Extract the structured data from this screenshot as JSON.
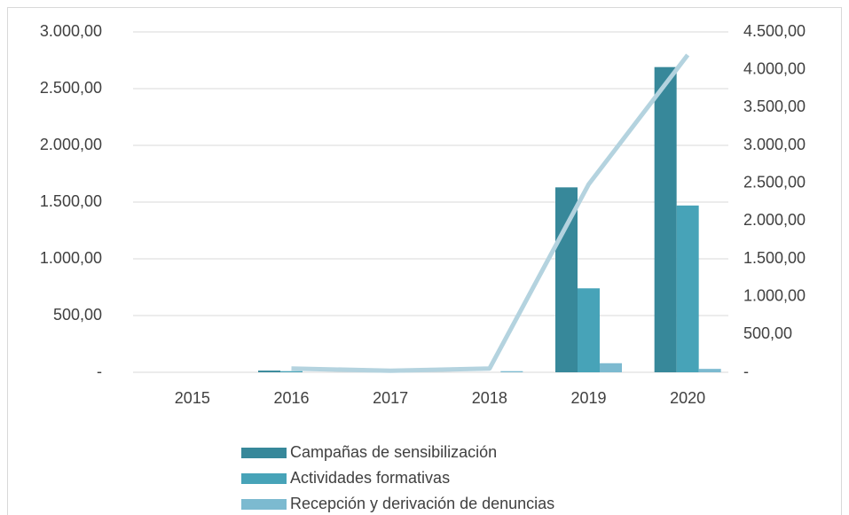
{
  "chart_data": {
    "type": "bar",
    "categories": [
      "2015",
      "2016",
      "2017",
      "2018",
      "2019",
      "2020"
    ],
    "series": [
      {
        "name": "Campañas de sensibilización",
        "color": "#37889a",
        "values": [
          0,
          15,
          0,
          0,
          1630,
          2690
        ]
      },
      {
        "name": "Actividades formativas",
        "color": "#47a3b8",
        "values": [
          0,
          10,
          0,
          0,
          740,
          1470
        ]
      },
      {
        "name": "Recepción y derivación de denuncias",
        "color": "#7cbad0",
        "values": [
          0,
          0,
          0,
          10,
          80,
          30
        ]
      }
    ],
    "line": {
      "color": "#b4d3df",
      "axis": "y2",
      "values": [
        null,
        50,
        20,
        50,
        2484,
        4195
      ]
    },
    "ylim": [
      0,
      3000
    ],
    "yticks": [
      {
        "value": 0,
        "label": "-"
      },
      {
        "value": 500,
        "label": "500,00"
      },
      {
        "value": 1000,
        "label": "1.000,00"
      },
      {
        "value": 1500,
        "label": "1.500,00"
      },
      {
        "value": 2000,
        "label": "2.000,00"
      },
      {
        "value": 2500,
        "label": "2.500,00"
      },
      {
        "value": 3000,
        "label": "3.000,00"
      }
    ],
    "y2lim": [
      0,
      4500
    ],
    "y2ticks": [
      {
        "value": 0,
        "label": "-"
      },
      {
        "value": 500,
        "label": "500,00"
      },
      {
        "value": 1000,
        "label": "1.000,00"
      },
      {
        "value": 1500,
        "label": "1.500,00"
      },
      {
        "value": 2000,
        "label": "2.000,00"
      },
      {
        "value": 2500,
        "label": "2.500,00"
      },
      {
        "value": 3000,
        "label": "3.000,00"
      },
      {
        "value": 3500,
        "label": "3.500,00"
      },
      {
        "value": 4000,
        "label": "4.000,00"
      },
      {
        "value": 4500,
        "label": "4.500,00"
      }
    ],
    "grid": true,
    "legend": "bottom"
  }
}
